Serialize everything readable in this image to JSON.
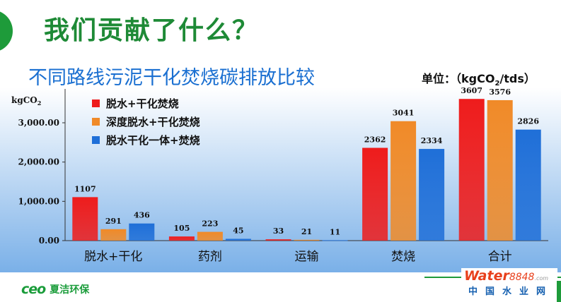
{
  "slide": {
    "title": "我们贡献了什么？",
    "subtitle": "不同路线污泥干化焚烧碳排放比较",
    "unit_prefix": "单位：（kgCO",
    "unit_sub": "2",
    "unit_suffix": "/tds）"
  },
  "footer": {
    "logo_mark": "ce",
    "logo_name": "夏洁环保",
    "water_brand": "Water",
    "water_num": "8848",
    "water_com": ".com",
    "water_cn": "中国水业网"
  },
  "colors": {
    "title": "#1e8a36",
    "subtitle": "#1a6fd1",
    "series": [
      "#ee1c1c",
      "#f08a28",
      "#1f6fd8"
    ],
    "plot_bg_top": "#ffffff",
    "plot_bg_bottom": "#7ab0e8"
  },
  "chart_data": {
    "type": "bar",
    "ylabel": "kgCO",
    "ylabel_sub": "2",
    "ylim": [
      0,
      3600
    ],
    "yticks": [
      0,
      1000,
      2000,
      3000
    ],
    "ytick_labels": [
      "0.00",
      "1,000.00",
      "2,000.00",
      "3,000.00"
    ],
    "categories": [
      "脱水+干化",
      "药剂",
      "运输",
      "焚烧",
      "合计"
    ],
    "legend_position": "top-left",
    "series": [
      {
        "name": "脱水+干化焚烧",
        "values": [
          1107,
          105,
          33,
          2362,
          3607
        ],
        "labels": [
          "1107",
          "105",
          "33",
          "2362",
          "3607"
        ]
      },
      {
        "name": "深度脱水+干化焚烧",
        "values": [
          291,
          223,
          21,
          3041,
          3576
        ],
        "labels": [
          "291",
          "223",
          "21",
          "3041",
          "3576"
        ]
      },
      {
        "name": "脱水干化一体+焚烧",
        "values": [
          436,
          45,
          11,
          2334,
          2826
        ],
        "labels": [
          "436",
          "45",
          "11",
          "2334",
          "2826"
        ]
      }
    ]
  }
}
